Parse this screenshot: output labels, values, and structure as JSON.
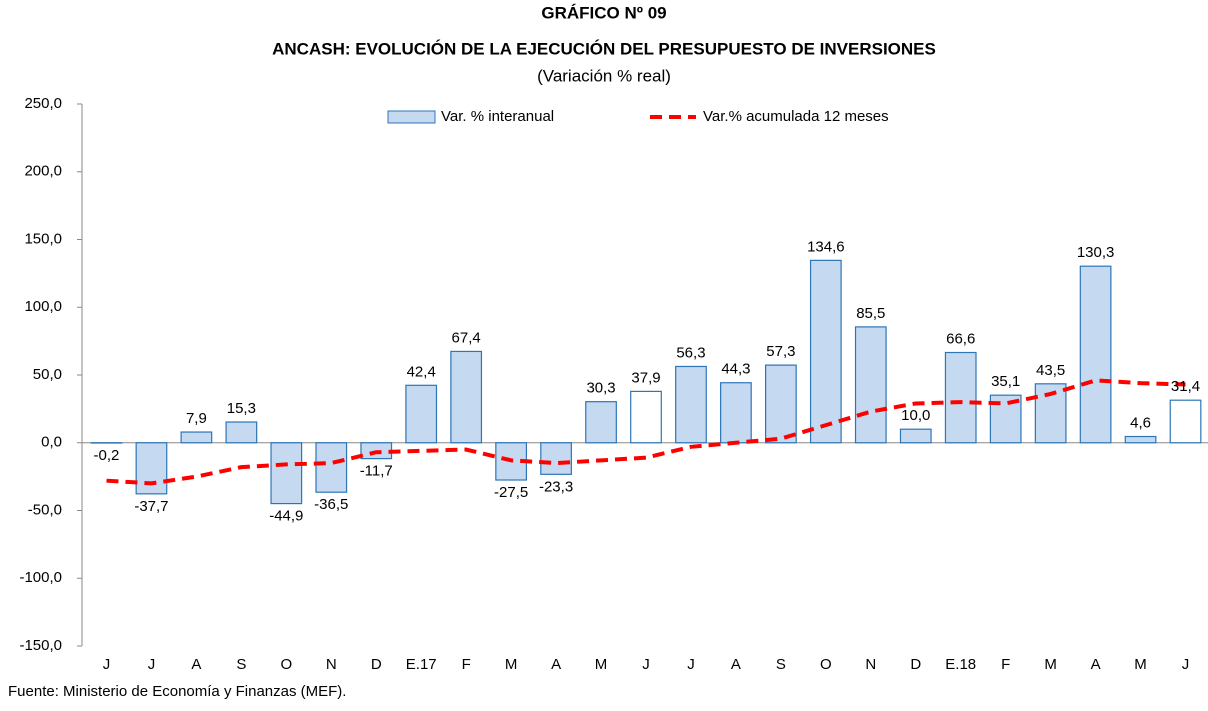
{
  "chart_data": {
    "type": "bar",
    "title": "GRÁFICO Nº 09",
    "subtitle": "ANCASH: EVOLUCIÓN DE LA EJECUCIÓN DEL PRESUPUESTO DE INVERSIONES",
    "note": "(Variación % real)",
    "source": "Fuente: Ministerio de Economía y Finanzas (MEF).",
    "categories": [
      "J",
      "J",
      "A",
      "S",
      "O",
      "N",
      "D",
      "E.17",
      "F",
      "M",
      "A",
      "M",
      "J",
      "J",
      "A",
      "S",
      "O",
      "N",
      "D",
      "E.18",
      "F",
      "M",
      "A",
      "M",
      "J"
    ],
    "series": [
      {
        "name": "Var. % interanual",
        "type": "bar",
        "color": "#c5d9f1",
        "edgecolor": "#2e75b6",
        "colors": [
          "#c5d9f1",
          "#c5d9f1",
          "#c5d9f1",
          "#c5d9f1",
          "#c5d9f1",
          "#c5d9f1",
          "#c5d9f1",
          "#c5d9f1",
          "#c5d9f1",
          "#c5d9f1",
          "#c5d9f1",
          "#c5d9f1",
          "#ffffff",
          "#c5d9f1",
          "#c5d9f1",
          "#c5d9f1",
          "#c5d9f1",
          "#c5d9f1",
          "#c5d9f1",
          "#c5d9f1",
          "#c5d9f1",
          "#c5d9f1",
          "#c5d9f1",
          "#c5d9f1",
          "#ffffff"
        ],
        "values": [
          -0.2,
          -37.7,
          7.9,
          15.3,
          -44.9,
          -36.5,
          -11.7,
          42.4,
          67.4,
          -27.5,
          -23.3,
          30.3,
          37.9,
          56.3,
          44.3,
          57.3,
          134.6,
          85.5,
          10.0,
          66.6,
          35.1,
          43.5,
          130.3,
          4.6,
          31.4
        ],
        "value_labels": [
          "-0,2",
          "-37,7",
          "7,9",
          "15,3",
          "-44,9",
          "-36,5",
          "-11,7",
          "42,4",
          "67,4",
          "-27,5",
          "-23,3",
          "30,3",
          "37,9",
          "56,3",
          "44,3",
          "57,3",
          "134,6",
          "85,5",
          "10,0",
          "66,6",
          "35,1",
          "43,5",
          "130,3",
          "4,6",
          "31,4"
        ]
      },
      {
        "name": "Var.% acumulada 12 meses",
        "type": "line",
        "color": "#ff0000",
        "dashed": true,
        "values": [
          -28,
          -30,
          -25,
          -18,
          -16,
          -15,
          -7,
          -6,
          -5,
          -13,
          -15,
          -13,
          -11,
          -3,
          0,
          3,
          13,
          23,
          29,
          30,
          29,
          36,
          46,
          44,
          43
        ]
      }
    ],
    "ylim": [
      -150,
      250
    ],
    "yticks": [
      {
        "value": -150,
        "label": "-150,0"
      },
      {
        "value": -100,
        "label": "-100,0"
      },
      {
        "value": -50,
        "label": "-50,0"
      },
      {
        "value": 0,
        "label": "0,0"
      },
      {
        "value": 50,
        "label": "50,0"
      },
      {
        "value": 100,
        "label": "100,0"
      },
      {
        "value": 150,
        "label": "150,0"
      },
      {
        "value": 200,
        "label": "200,0"
      },
      {
        "value": 250,
        "label": "250,0"
      }
    ],
    "grid": false,
    "legend": "top"
  }
}
